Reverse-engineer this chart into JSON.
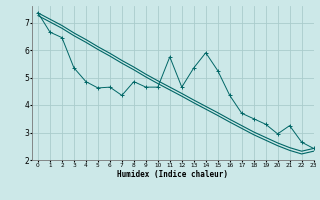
{
  "xlabel": "Humidex (Indice chaleur)",
  "bg_color": "#cce8e8",
  "grid_color": "#aacccc",
  "line_color": "#006666",
  "xlim": [
    -0.5,
    23
  ],
  "ylim": [
    2.0,
    7.6
  ],
  "yticks": [
    2,
    3,
    4,
    5,
    6,
    7
  ],
  "xticks": [
    0,
    1,
    2,
    3,
    4,
    5,
    6,
    7,
    8,
    9,
    10,
    11,
    12,
    13,
    14,
    15,
    16,
    17,
    18,
    19,
    20,
    21,
    22,
    23
  ],
  "smooth_x": [
    0,
    1,
    2,
    3,
    4,
    5,
    6,
    7,
    8,
    9,
    10,
    11,
    12,
    13,
    14,
    15,
    16,
    17,
    18,
    19,
    20,
    21,
    22,
    23
  ],
  "smooth_y": [
    7.35,
    7.12,
    6.89,
    6.62,
    6.38,
    6.12,
    5.88,
    5.62,
    5.38,
    5.12,
    4.88,
    4.65,
    4.42,
    4.18,
    3.95,
    3.72,
    3.48,
    3.25,
    3.02,
    2.82,
    2.62,
    2.45,
    2.32,
    2.42
  ],
  "smooth_y2": [
    7.25,
    7.02,
    6.79,
    6.52,
    6.28,
    6.02,
    5.78,
    5.52,
    5.28,
    5.02,
    4.78,
    4.55,
    4.32,
    4.08,
    3.85,
    3.62,
    3.38,
    3.15,
    2.92,
    2.72,
    2.52,
    2.35,
    2.22,
    2.32
  ],
  "data_x": [
    0,
    1,
    2,
    3,
    4,
    5,
    6,
    7,
    8,
    9,
    10,
    11,
    12,
    13,
    14,
    15,
    16,
    17,
    18,
    19,
    20,
    21,
    22,
    23
  ],
  "data_y": [
    7.35,
    6.65,
    6.45,
    5.35,
    4.85,
    4.62,
    4.65,
    4.35,
    4.85,
    4.65,
    4.65,
    5.75,
    4.65,
    5.35,
    5.9,
    5.25,
    4.35,
    3.7,
    3.5,
    3.3,
    2.95,
    3.25,
    2.65,
    2.42
  ]
}
